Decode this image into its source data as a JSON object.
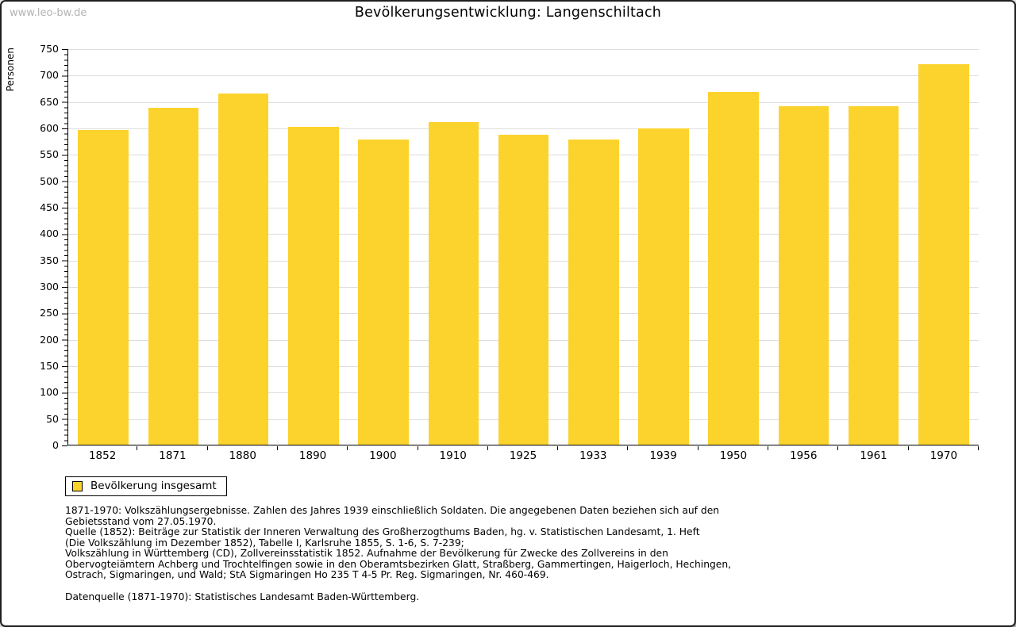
{
  "watermark": "www.leo-bw.de",
  "title": "Bevölkerungsentwicklung: Langenschiltach",
  "colors": {
    "bar": "#FCD32D",
    "grid": "#DEDEDE",
    "axis": "#000000",
    "watermark": "#B3B3B3"
  },
  "chart_data": {
    "type": "bar",
    "title": "Bevölkerungsentwicklung: Langenschiltach",
    "categories": [
      "1852",
      "1871",
      "1880",
      "1890",
      "1900",
      "1910",
      "1925",
      "1933",
      "1939",
      "1950",
      "1956",
      "1961",
      "1970"
    ],
    "values": [
      595,
      638,
      665,
      601,
      578,
      610,
      586,
      577,
      598,
      667,
      641,
      640,
      720
    ],
    "series_name": "Bevölkerung insgesamt",
    "xlabel": "",
    "ylabel": "Personen",
    "ylim": [
      0,
      750
    ],
    "ytick_step": 50,
    "ytick_minor_step": 10,
    "grid": true,
    "legend_position": "bottom-left",
    "bar_color": "#FCD32D"
  },
  "legend": {
    "label": "Bevölkerung insgesamt"
  },
  "footnotes": {
    "lines": [
      "1871-1970: Volkszählungsergebnisse. Zahlen des Jahres 1939 einschließlich Soldaten. Die angegebenen Daten beziehen sich auf den",
      "Gebietsstand vom 27.05.1970.",
      "Quelle (1852): Beiträge zur Statistik der Inneren Verwaltung des Großherzogthums Baden, hg. v. Statistischen Landesamt, 1. Heft",
      "(Die Volkszählung im Dezember 1852), Tabelle I, Karlsruhe 1855, S. 1-6, S. 7-239;",
      "Volkszählung in Württemberg (CD), Zollvereinsstatistik 1852. Aufnahme der Bevölkerung für Zwecke des Zollvereins in den",
      "Obervogteiämtern Achberg und Trochtelfingen sowie in den Oberamtsbezirken Glatt, Straßberg, Gammertingen, Haigerloch, Hechingen,",
      "Ostrach, Sigmaringen, und Wald; StA Sigmaringen Ho 235 T 4-5 Pr. Reg. Sigmaringen, Nr. 460-469."
    ],
    "datasource": "Datenquelle (1871-1970): Statistisches Landesamt Baden-Württemberg."
  }
}
